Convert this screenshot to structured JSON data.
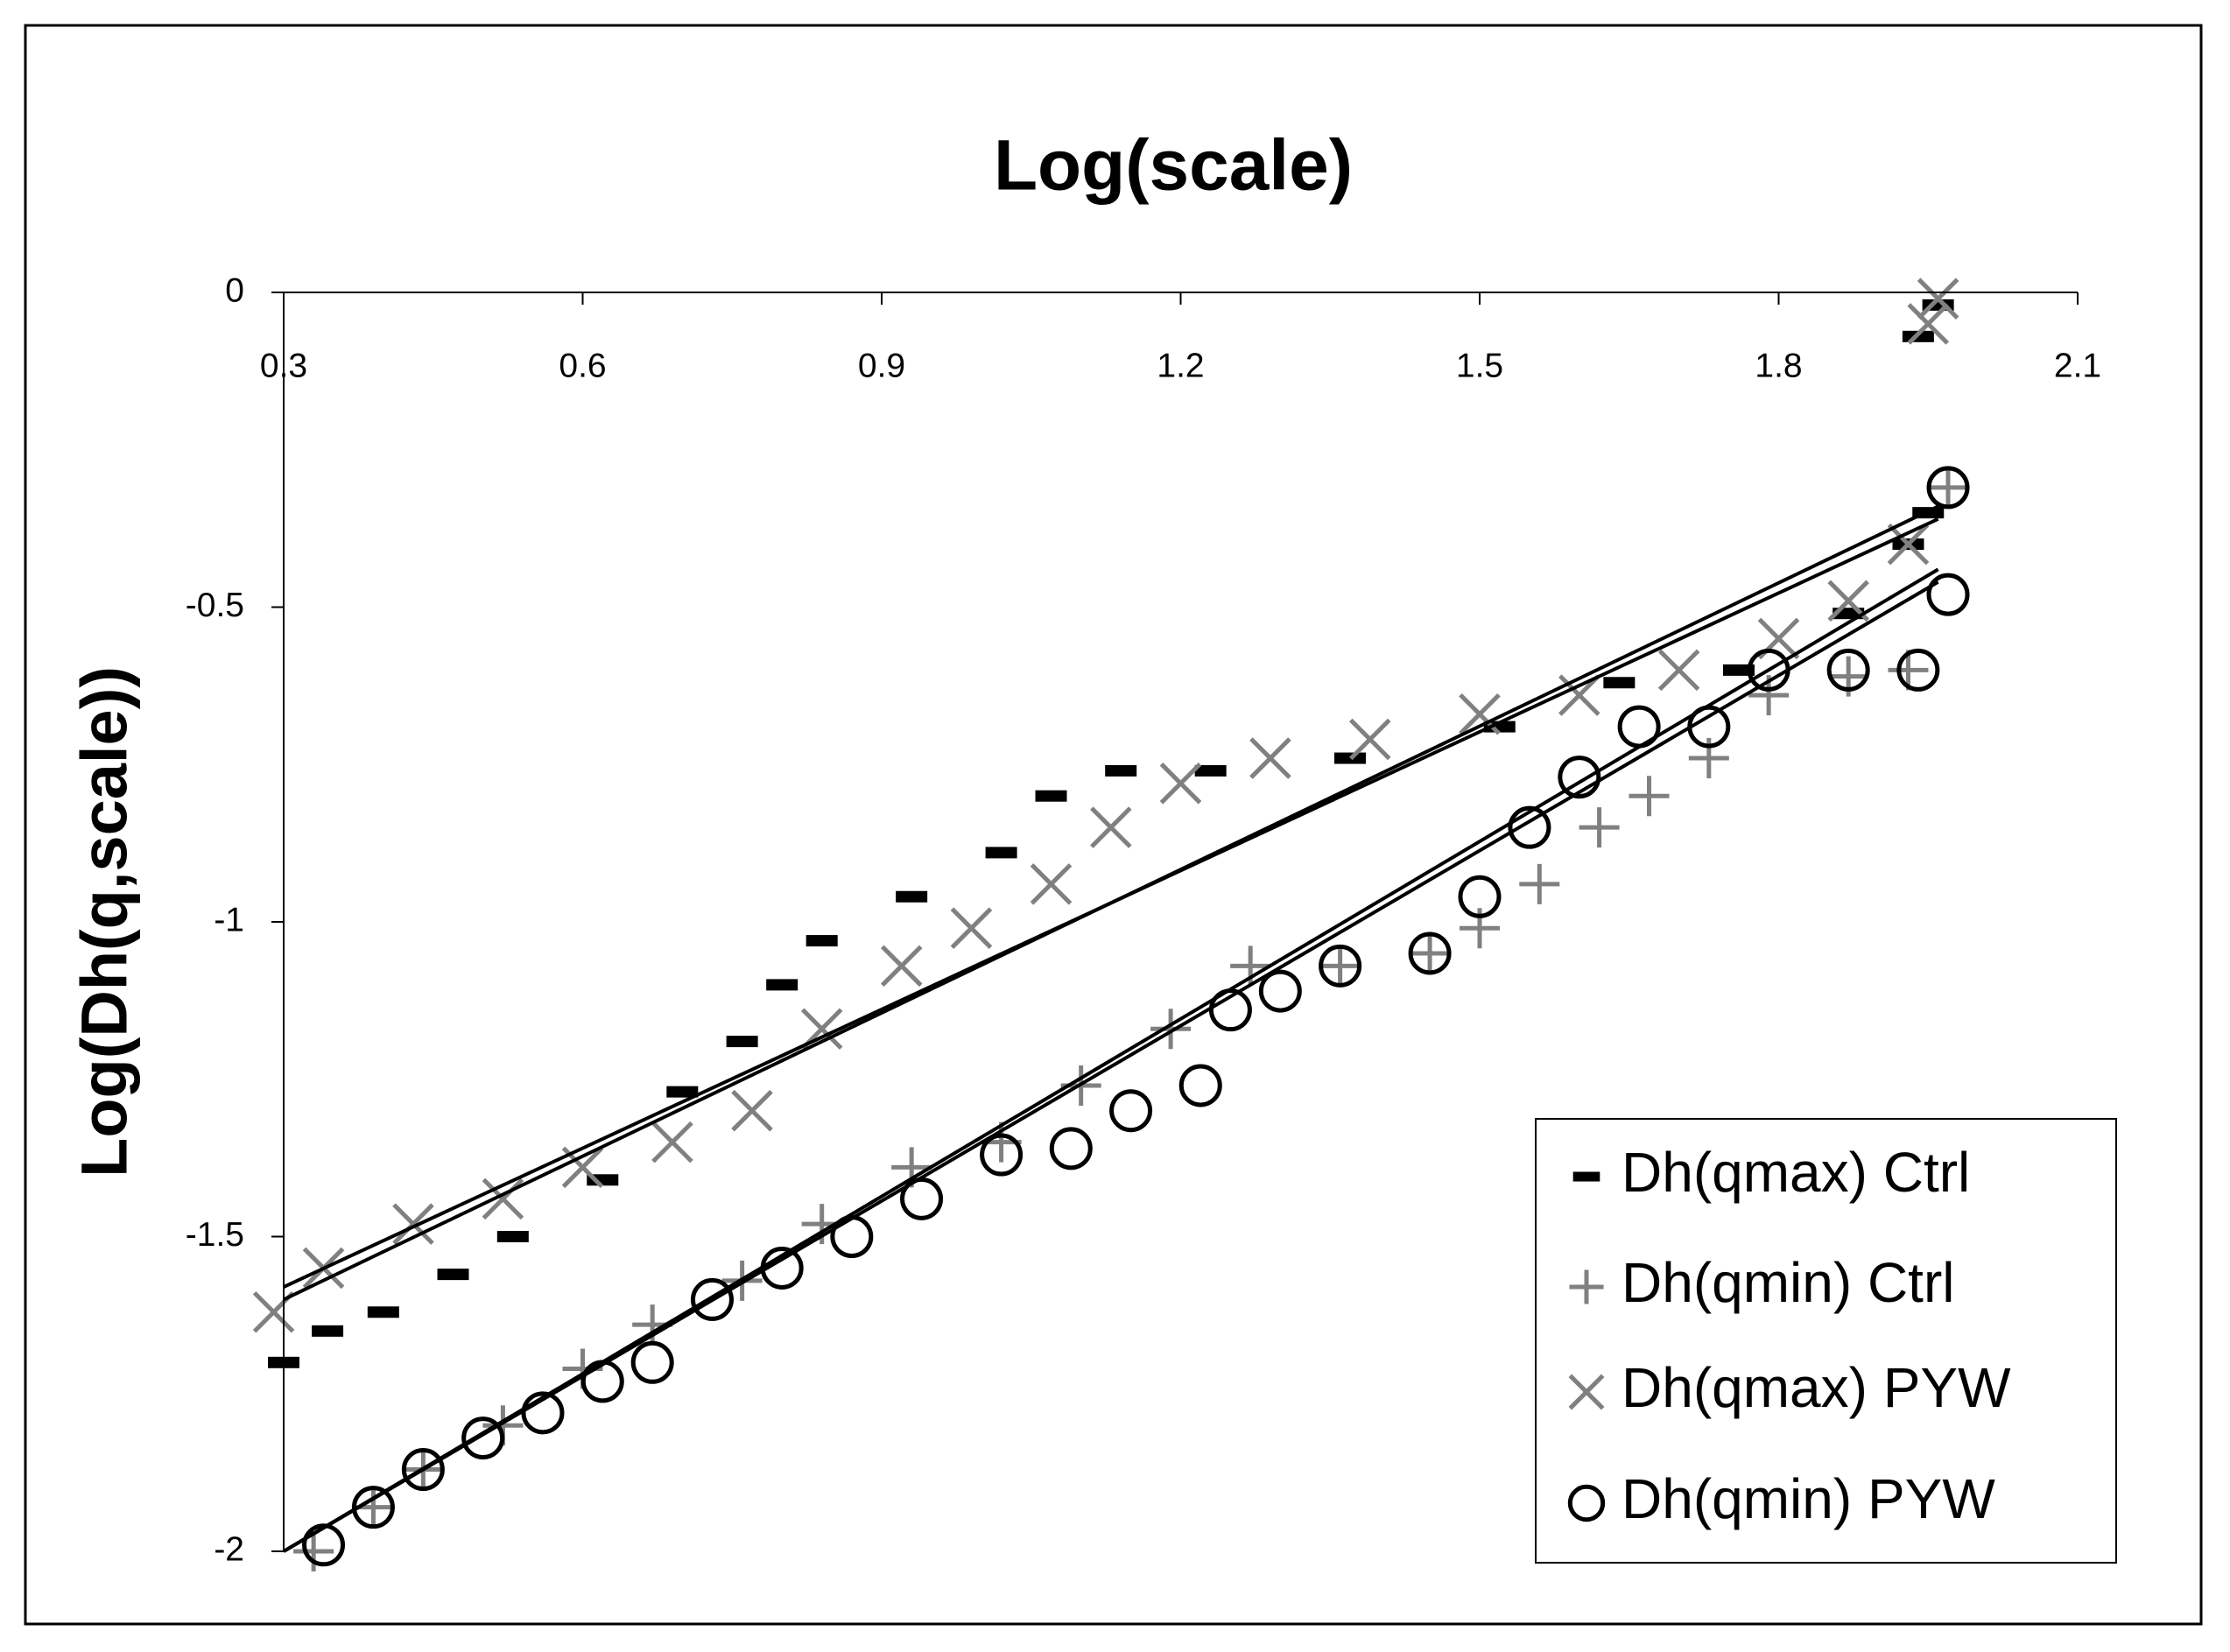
{
  "chart_data": {
    "type": "scatter",
    "title": "Log(scale)",
    "y_label": "Log(Dh(q,scale))",
    "xlim": [
      0.3,
      2.1
    ],
    "xticks": [
      0.3,
      0.6,
      0.9,
      1.2,
      1.5,
      1.8,
      2.1
    ],
    "ylim": [
      -2,
      0
    ],
    "yticks": [
      -2,
      -1.5,
      -1,
      -0.5,
      0
    ],
    "x_axis_position": "top",
    "grid": false,
    "legend": "lower right",
    "series": [
      {
        "name": "Dh(qmax) Ctrl",
        "color": "#000000",
        "marker": "dash",
        "x": [
          0.3,
          0.344,
          0.4,
          0.47,
          0.53,
          0.62,
          0.7,
          0.76,
          0.8,
          0.84,
          0.93,
          1.02,
          1.07,
          1.14,
          1.23,
          1.37,
          1.52,
          1.64,
          1.76,
          1.87,
          1.93,
          1.95,
          1.94,
          1.96
        ],
        "values": [
          -1.7,
          -1.65,
          -1.62,
          -1.56,
          -1.5,
          -1.41,
          -1.27,
          -1.19,
          -1.1,
          -1.03,
          -0.96,
          -0.89,
          -0.8,
          -0.76,
          -0.76,
          -0.74,
          -0.69,
          -0.62,
          -0.6,
          -0.51,
          -0.4,
          -0.35,
          -0.07,
          -0.02
        ],
        "trendline": {
          "x": [
            0.3,
            1.96
          ],
          "y": [
            -1.58,
            -0.36
          ]
        }
      },
      {
        "name": "Dh(qmin) Ctrl",
        "color": "#808080",
        "marker": "plus",
        "x": [
          0.33,
          0.39,
          0.44,
          0.52,
          0.6,
          0.67,
          0.76,
          0.84,
          0.93,
          1.02,
          1.1,
          1.19,
          1.27,
          1.36,
          1.45,
          1.5,
          1.56,
          1.62,
          1.67,
          1.73,
          1.79,
          1.87,
          1.93,
          1.97
        ],
        "values": [
          -2.0,
          -1.93,
          -1.87,
          -1.8,
          -1.71,
          -1.64,
          -1.57,
          -1.48,
          -1.39,
          -1.35,
          -1.26,
          -1.17,
          -1.07,
          -1.07,
          -1.05,
          -1.01,
          -0.94,
          -0.85,
          -0.8,
          -0.74,
          -0.64,
          -0.61,
          -0.6,
          -0.31
        ],
        "trendline": {
          "x": [
            0.3,
            1.96
          ],
          "y": [
            -2.0,
            -0.44
          ]
        }
      },
      {
        "name": "Dh(qmax) PYW",
        "color": "#808080",
        "marker": "x",
        "x": [
          0.29,
          0.34,
          0.43,
          0.52,
          0.6,
          0.69,
          0.77,
          0.84,
          0.92,
          0.99,
          1.07,
          1.13,
          1.2,
          1.29,
          1.39,
          1.5,
          1.6,
          1.7,
          1.8,
          1.87,
          1.93,
          1.96,
          1.95
        ],
        "values": [
          -1.62,
          -1.55,
          -1.48,
          -1.44,
          -1.39,
          -1.35,
          -1.3,
          -1.17,
          -1.07,
          -1.01,
          -0.94,
          -0.85,
          -0.78,
          -0.74,
          -0.71,
          -0.67,
          -0.64,
          -0.6,
          -0.55,
          -0.49,
          -0.4,
          -0.01,
          -0.05
        ],
        "trendline": {
          "x": [
            0.3,
            1.96
          ],
          "y": [
            -1.6,
            -0.34
          ]
        }
      },
      {
        "name": "Dh(qmin) PYW",
        "color": "#000000",
        "marker": "circle",
        "x": [
          0.34,
          0.39,
          0.44,
          0.5,
          0.56,
          0.62,
          0.67,
          0.73,
          0.8,
          0.87,
          0.94,
          1.02,
          1.09,
          1.15,
          1.22,
          1.25,
          1.3,
          1.36,
          1.45,
          1.5,
          1.55,
          1.6,
          1.66,
          1.73,
          1.79,
          1.87,
          1.94,
          1.97,
          1.97
        ],
        "values": [
          -1.99,
          -1.93,
          -1.87,
          -1.82,
          -1.78,
          -1.73,
          -1.7,
          -1.6,
          -1.55,
          -1.5,
          -1.44,
          -1.37,
          -1.36,
          -1.3,
          -1.26,
          -1.14,
          -1.11,
          -1.07,
          -1.05,
          -0.96,
          -0.85,
          -0.77,
          -0.69,
          -0.69,
          -0.6,
          -0.6,
          -0.6,
          -0.48,
          -0.31
        ],
        "trendline": {
          "x": [
            0.3,
            1.96
          ],
          "y": [
            -2.0,
            -0.46
          ]
        }
      }
    ]
  }
}
